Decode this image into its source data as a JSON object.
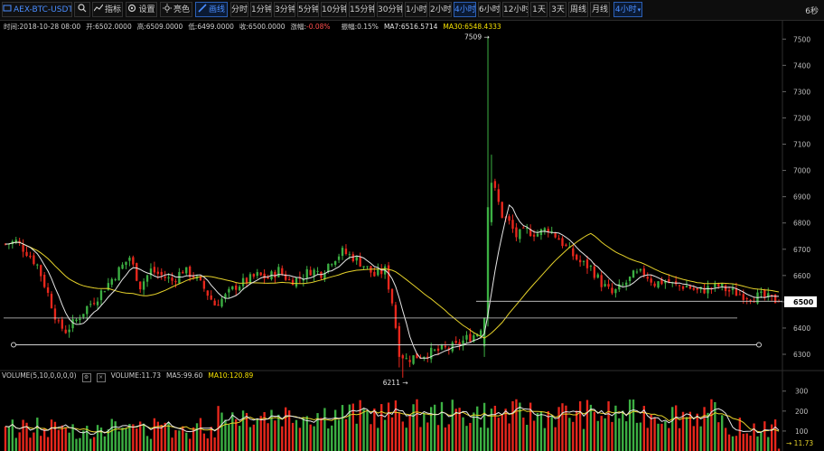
{
  "toolbar": {
    "symbol": "AEX-BTC-USDT",
    "indicators_label": "指标",
    "settings_label": "设置",
    "theme_label": "亮色",
    "draw_label": "画线",
    "intervals": [
      "分时",
      "1分钟",
      "3分钟",
      "5分钟",
      "10分钟",
      "15分钟",
      "30分钟",
      "1小时",
      "2小时",
      "4小时",
      "6小时",
      "12小时",
      "1天",
      "3天",
      "周线",
      "月线"
    ],
    "active_interval": "4小时",
    "interval_dropdown": "4小时",
    "refresh_timer": "6秒"
  },
  "info": {
    "time": "时间:2018-10-28 08:00",
    "open": "开:6502.0000",
    "high": "高:6509.0000",
    "low": "低:6499.0000",
    "close": "收:6500.0000",
    "change": "-0.08%",
    "change_label": "涨幅:",
    "amplitude": "振幅:0.15%",
    "ma7": "MA7:6516.5714",
    "ma30": "MA30:6548.4333"
  },
  "volume_info": {
    "title": "VOLUME(5,10,0,0,0,0)",
    "volume": "VOLUME:11.73",
    "ma5": "MA5:99.60",
    "ma10": "MA10:120.89"
  },
  "colors": {
    "up": "#3cb043",
    "down": "#e8271c",
    "ma7": "#e6e6e6",
    "ma30": "#e6d22a",
    "accent": "#4a8dff",
    "price_tag": "#ffffff"
  },
  "chart_data": [
    {
      "type": "candlestick",
      "title": "AEX-BTC-USDT 4小时",
      "y_axis_ticks": [
        7500,
        7400,
        7300,
        7200,
        7100,
        7000,
        6900,
        6800,
        6700,
        6600,
        6500,
        6400,
        6300
      ],
      "ylim": [
        6245,
        7525
      ],
      "last_price": 6500,
      "high_marker": "7509",
      "low_marker": "6211",
      "annotation_lines": [
        6438,
        6502,
        6336
      ],
      "anchors": [
        [
          0,
          6720
        ],
        [
          3,
          6730
        ],
        [
          6,
          6690
        ],
        [
          9,
          6640
        ],
        [
          12,
          6530
        ],
        [
          15,
          6410
        ],
        [
          17,
          6390
        ],
        [
          20,
          6430
        ],
        [
          23,
          6480
        ],
        [
          26,
          6520
        ],
        [
          29,
          6570
        ],
        [
          32,
          6620
        ],
        [
          35,
          6670
        ],
        [
          38,
          6560
        ],
        [
          41,
          6620
        ],
        [
          44,
          6600
        ],
        [
          47,
          6580
        ],
        [
          50,
          6620
        ],
        [
          53,
          6600
        ],
        [
          56,
          6550
        ],
        [
          59,
          6490
        ],
        [
          62,
          6520
        ],
        [
          65,
          6560
        ],
        [
          68,
          6580
        ],
        [
          71,
          6600
        ],
        [
          74,
          6590
        ],
        [
          77,
          6620
        ],
        [
          80,
          6580
        ],
        [
          83,
          6590
        ],
        [
          86,
          6620
        ],
        [
          89,
          6610
        ],
        [
          92,
          6660
        ],
        [
          95,
          6690
        ],
        [
          98,
          6670
        ],
        [
          101,
          6640
        ],
        [
          104,
          6600
        ],
        [
          107,
          6620
        ],
        [
          109,
          6500
        ],
        [
          111,
          6310
        ],
        [
          113,
          6280
        ],
        [
          115,
          6290
        ],
        [
          118,
          6300
        ],
        [
          121,
          6310
        ],
        [
          124,
          6320
        ],
        [
          127,
          6330
        ],
        [
          130,
          6360
        ],
        [
          133,
          6380
        ],
        [
          135,
          6430
        ],
        [
          136,
          6820
        ],
        [
          137,
          6960
        ],
        [
          138,
          6920
        ],
        [
          140,
          6830
        ],
        [
          142,
          6800
        ],
        [
          144,
          6750
        ],
        [
          147,
          6770
        ],
        [
          150,
          6760
        ],
        [
          153,
          6780
        ],
        [
          156,
          6740
        ],
        [
          159,
          6690
        ],
        [
          162,
          6650
        ],
        [
          165,
          6630
        ],
        [
          168,
          6570
        ],
        [
          171,
          6530
        ],
        [
          174,
          6560
        ],
        [
          177,
          6600
        ],
        [
          180,
          6610
        ],
        [
          183,
          6570
        ],
        [
          186,
          6580
        ],
        [
          189,
          6560
        ],
        [
          192,
          6560
        ],
        [
          195,
          6540
        ],
        [
          198,
          6550
        ],
        [
          201,
          6560
        ],
        [
          204,
          6540
        ],
        [
          207,
          6530
        ],
        [
          210,
          6520
        ],
        [
          213,
          6520
        ],
        [
          216,
          6510
        ],
        [
          218,
          6500
        ]
      ],
      "candle_count": 219
    },
    {
      "type": "bar",
      "title": "VOLUME",
      "y_axis_ticks": [
        300,
        200,
        100
      ],
      "ylim": [
        0,
        335
      ],
      "last_value": "11.73",
      "ma5_last": 99.6,
      "ma10_last": 120.89
    }
  ]
}
